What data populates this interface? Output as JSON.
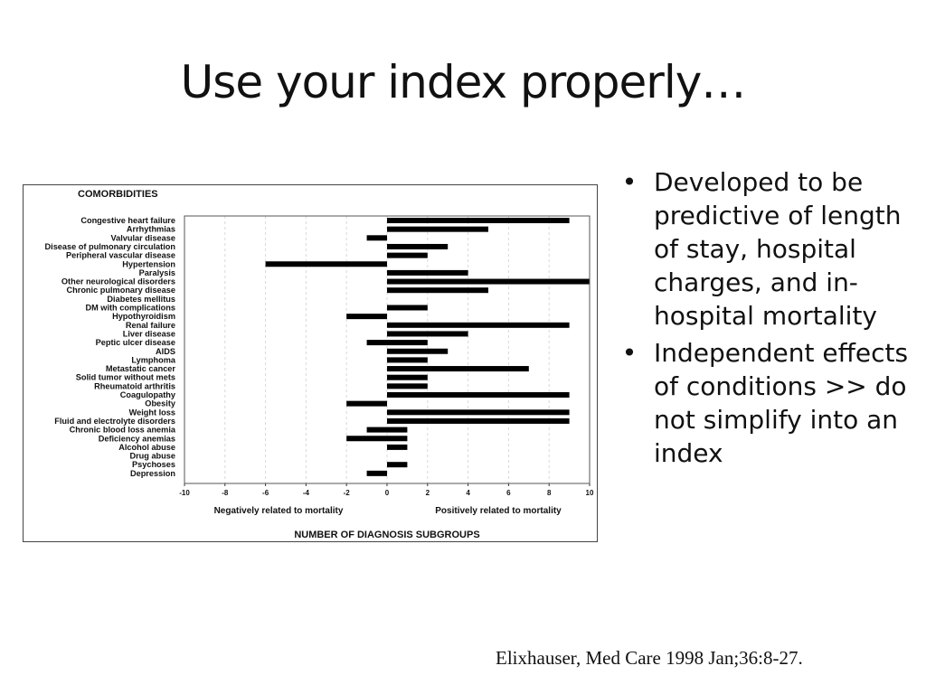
{
  "slide": {
    "title": "Use your index properly…",
    "bullets": [
      "Developed to be predictive of length of stay, hospital charges, and in-hospital mortality",
      "Independent effects of conditions >> do not simplify into an index"
    ],
    "bullet_glyph": "•",
    "citation": "Elixhauser, Med Care 1998 Jan;36:8-27."
  },
  "chart_data": {
    "type": "bar",
    "orientation": "horizontal",
    "category_header": "COMORBIDITIES",
    "categories": [
      "Congestive heart failure",
      "Arrhythmias",
      "Valvular disease",
      "Disease of pulmonary circulation",
      "Peripheral vascular disease",
      "Hypertension",
      "Paralysis",
      "Other neurological disorders",
      "Chronic pulmonary disease",
      "Diabetes mellitus",
      "DM with complications",
      "Hypothyroidism",
      "Renal failure",
      "Liver disease",
      "Peptic ulcer disease",
      "AIDS",
      "Lymphoma",
      "Metastatic cancer",
      "Solid tumor without mets",
      "Rheumatoid arthritis",
      "Coagulopathy",
      "Obesity",
      "Weight loss",
      "Fluid and electrolyte disorders",
      "Chronic blood loss anemia",
      "Deficiency anemias",
      "Alcohol abuse",
      "Drug abuse",
      "Psychoses",
      "Depression"
    ],
    "bars": [
      [
        [
          0,
          9
        ]
      ],
      [
        [
          0,
          5
        ]
      ],
      [
        [
          -1,
          0
        ]
      ],
      [
        [
          0,
          3
        ]
      ],
      [
        [
          0,
          2
        ]
      ],
      [
        [
          -6,
          0
        ]
      ],
      [
        [
          0,
          4
        ]
      ],
      [
        [
          0,
          10
        ]
      ],
      [
        [
          0,
          5
        ]
      ],
      [],
      [
        [
          0,
          2
        ]
      ],
      [
        [
          -2,
          0
        ]
      ],
      [
        [
          0,
          9
        ]
      ],
      [
        [
          0,
          4
        ]
      ],
      [
        [
          -1,
          2
        ]
      ],
      [
        [
          0,
          3
        ]
      ],
      [
        [
          0,
          2
        ]
      ],
      [
        [
          0,
          7
        ]
      ],
      [
        [
          0,
          2
        ]
      ],
      [
        [
          0,
          2
        ]
      ],
      [
        [
          0,
          9
        ]
      ],
      [
        [
          -2,
          0
        ]
      ],
      [
        [
          0,
          9
        ]
      ],
      [
        [
          0,
          9
        ]
      ],
      [
        [
          -1,
          1
        ]
      ],
      [
        [
          -2,
          1
        ]
      ],
      [
        [
          0,
          1
        ]
      ],
      [],
      [
        [
          0,
          1
        ]
      ],
      [
        [
          -1,
          0
        ]
      ]
    ],
    "xlim": [
      -10,
      10
    ],
    "xticks": [
      -10,
      -8,
      -6,
      -4,
      -2,
      0,
      2,
      4,
      6,
      8,
      10
    ],
    "xlabel": "NUMBER OF DIAGNOSIS SUBGROUPS",
    "negative_label": "Negatively related to mortality",
    "positive_label": "Positively related to mortality",
    "grid": "vertical dashed",
    "bar_color": "#000000",
    "grid_color": "#d8d8d8"
  }
}
